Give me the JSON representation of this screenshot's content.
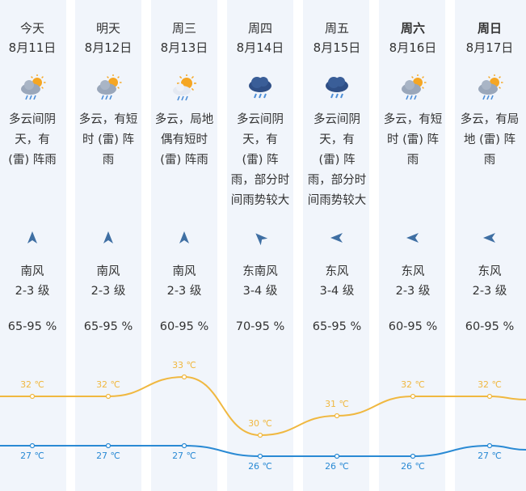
{
  "days": [
    {
      "day": "今天",
      "date": "8月11日",
      "icon": "cloud-rain-sun-icon",
      "desc": [
        "多云间阴",
        "天，有",
        "(雷) 阵雨"
      ],
      "wind": "南风",
      "level": "2-3 级",
      "humidity": "65-95 %",
      "dir": "north"
    },
    {
      "day": "明天",
      "date": "8月12日",
      "icon": "cloud-rain-sun-icon",
      "desc": [
        "多云，有短",
        "时 (雷) 阵",
        "雨"
      ],
      "wind": "南风",
      "level": "2-3 级",
      "humidity": "65-95 %",
      "dir": "north"
    },
    {
      "day": "周三",
      "date": "8月13日",
      "icon": "sun-cloud-rain-icon",
      "desc": [
        "多云，局地",
        "偶有短时",
        "(雷) 阵雨"
      ],
      "wind": "南风",
      "level": "2-3 级",
      "humidity": "60-95 %",
      "dir": "north"
    },
    {
      "day": "周四",
      "date": "8月14日",
      "icon": "dark-cloud-rain-icon",
      "desc": [
        "多云间阴",
        "天，有",
        "(雷) 阵",
        "雨，部分时",
        "间雨势较大"
      ],
      "wind": "东南风",
      "level": "3-4 级",
      "humidity": "70-95 %",
      "dir": "northwest"
    },
    {
      "day": "周五",
      "date": "8月15日",
      "icon": "dark-cloud-rain-icon",
      "desc": [
        "多云间阴",
        "天，有",
        "(雷) 阵",
        "雨，部分时",
        "间雨势较大"
      ],
      "wind": "东风",
      "level": "3-4 级",
      "humidity": "65-95 %",
      "dir": "west"
    },
    {
      "day": "周六",
      "date": "8月16日",
      "icon": "cloud-rain-sun-icon",
      "desc": [
        "多云，有短",
        "时 (雷) 阵",
        "雨"
      ],
      "wind": "东风",
      "level": "2-3 级",
      "humidity": "60-95 %",
      "dir": "west"
    },
    {
      "day": "周日",
      "date": "8月17日",
      "icon": "cloud-rain-sun-icon",
      "desc": [
        "多云，有局",
        "地 (雷) 阵",
        "雨"
      ],
      "wind": "东风",
      "level": "2-3 级",
      "humidity": "60-95 %",
      "dir": "west"
    }
  ],
  "chart_data": {
    "type": "line",
    "categories": [
      "8月11日",
      "8月12日",
      "8月13日",
      "8月14日",
      "8月15日",
      "8月16日",
      "8月17日"
    ],
    "series": [
      {
        "values": [
          32,
          32,
          33,
          30,
          31,
          32,
          32
        ],
        "labels": [
          "32 ℃",
          "32 ℃",
          "33 ℃",
          "30 ℃",
          "31 ℃",
          "32 ℃",
          "32 ℃"
        ],
        "color": "#f0b840"
      },
      {
        "values": [
          27,
          27,
          27,
          26,
          26,
          26,
          27
        ],
        "labels": [
          "27 ℃",
          "27 ℃",
          "27 ℃",
          "26 ℃",
          "26 ℃",
          "26 ℃",
          "27 ℃"
        ],
        "color": "#2a8ad4"
      }
    ]
  },
  "colors": {
    "column_bg": "#f1f5fb",
    "arrow": "#3f6fa3",
    "high": "#f0b840",
    "low": "#2a8ad4"
  }
}
